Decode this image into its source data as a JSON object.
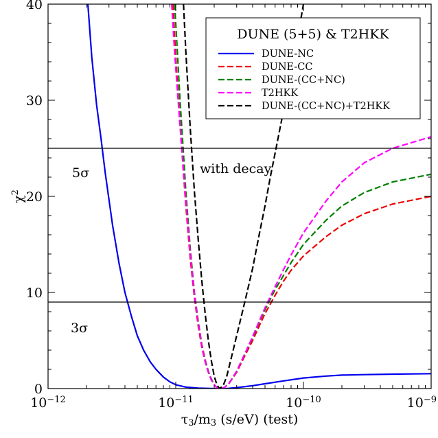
{
  "chart_data": {
    "type": "line",
    "title": "",
    "xlabel": "τ₃/m₃ (s/eV) (test)",
    "ylabel": "χ²",
    "x_scale": "log",
    "xlim": [
      1e-12,
      1e-09
    ],
    "ylim": [
      0,
      40
    ],
    "x_ticks": [
      {
        "value": 1e-12,
        "base": "10",
        "exp": "−12"
      },
      {
        "value": 1e-11,
        "base": "10",
        "exp": "−11"
      },
      {
        "value": 1e-10,
        "base": "10",
        "exp": "−10"
      },
      {
        "value": 1e-09,
        "base": "10",
        "exp": "−9"
      }
    ],
    "y_ticks": [
      0,
      10,
      20,
      30,
      40
    ],
    "y_tick_labels": [
      "0",
      "10",
      "20",
      "30",
      "40"
    ],
    "grid": false,
    "legend": {
      "title": "DUNE (5+5) & T2HKK",
      "position": "top-right"
    },
    "hlines": [
      {
        "y": 25,
        "label": "5σ"
      },
      {
        "y": 9,
        "label": "3σ"
      }
    ],
    "annotations": [
      {
        "text": "with decay",
        "x": 1.4e-11,
        "y": 22.5
      }
    ],
    "series": [
      {
        "name": "DUNE-NC",
        "color": "#0000ee",
        "style": "solid",
        "points": [
          [
            2.05e-12,
            40
          ],
          [
            2.2e-12,
            34.5
          ],
          [
            2.4e-12,
            29.5
          ],
          [
            2.6e-12,
            26
          ],
          [
            2.8e-12,
            22.5
          ],
          [
            3.2e-12,
            17
          ],
          [
            3.6e-12,
            13
          ],
          [
            4e-12,
            10
          ],
          [
            4.5e-12,
            7.5
          ],
          [
            5e-12,
            5.5
          ],
          [
            5.6e-12,
            4
          ],
          [
            6.3e-12,
            2.8
          ],
          [
            7e-12,
            2
          ],
          [
            8e-12,
            1.2
          ],
          [
            9e-12,
            0.7
          ],
          [
            1e-11,
            0.4
          ],
          [
            1.2e-11,
            0.15
          ],
          [
            1.5e-11,
            0.05
          ],
          [
            2e-11,
            0
          ],
          [
            2.5e-11,
            0
          ],
          [
            3e-11,
            0.1
          ],
          [
            4e-11,
            0.3
          ],
          [
            5e-11,
            0.5
          ],
          [
            7e-11,
            0.8
          ],
          [
            1e-10,
            1.1
          ],
          [
            1.5e-10,
            1.3
          ],
          [
            2e-10,
            1.4
          ],
          [
            3e-10,
            1.45
          ],
          [
            5e-10,
            1.5
          ],
          [
            1e-09,
            1.55
          ]
        ]
      },
      {
        "name": "DUNE-CC",
        "color": "#ee0000",
        "style": "dashed",
        "points": [
          [
            9.5e-12,
            40
          ],
          [
            1e-11,
            34.5
          ],
          [
            1.05e-11,
            30
          ],
          [
            1.1e-11,
            26
          ],
          [
            1.2e-11,
            19
          ],
          [
            1.3e-11,
            13.5
          ],
          [
            1.4e-11,
            9.5
          ],
          [
            1.5e-11,
            6.5
          ],
          [
            1.6e-11,
            4.3
          ],
          [
            1.7e-11,
            2.8
          ],
          [
            1.8e-11,
            1.7
          ],
          [
            1.9e-11,
            0.9
          ],
          [
            2e-11,
            0.4
          ],
          [
            2.1e-11,
            0.1
          ],
          [
            2.25e-11,
            0
          ],
          [
            2.4e-11,
            0.1
          ],
          [
            2.6e-11,
            0.5
          ],
          [
            3e-11,
            1.7
          ],
          [
            3.5e-11,
            3.5
          ],
          [
            4e-11,
            5
          ],
          [
            4.5e-11,
            6.5
          ],
          [
            5e-11,
            7.8
          ],
          [
            6e-11,
            9.7
          ],
          [
            7e-11,
            11.2
          ],
          [
            8e-11,
            12.3
          ],
          [
            1e-10,
            13.8
          ],
          [
            1.5e-10,
            15.8
          ],
          [
            2e-10,
            17
          ],
          [
            3e-10,
            18.2
          ],
          [
            5e-10,
            19.2
          ],
          [
            1e-09,
            20
          ]
        ]
      },
      {
        "name": "DUNE-(CC+NC)",
        "color": "#008000",
        "style": "dashed",
        "points": [
          [
            9.8e-12,
            40
          ],
          [
            1.03e-11,
            35
          ],
          [
            1.08e-11,
            30
          ],
          [
            1.13e-11,
            26
          ],
          [
            1.2e-11,
            20.5
          ],
          [
            1.3e-11,
            14.5
          ],
          [
            1.4e-11,
            10
          ],
          [
            1.5e-11,
            7
          ],
          [
            1.6e-11,
            4.6
          ],
          [
            1.7e-11,
            3
          ],
          [
            1.8e-11,
            1.8
          ],
          [
            1.9e-11,
            1
          ],
          [
            2e-11,
            0.4
          ],
          [
            2.1e-11,
            0.1
          ],
          [
            2.25e-11,
            0
          ],
          [
            2.4e-11,
            0.1
          ],
          [
            2.6e-11,
            0.5
          ],
          [
            3e-11,
            1.8
          ],
          [
            3.5e-11,
            3.7
          ],
          [
            4e-11,
            5.3
          ],
          [
            4.5e-11,
            6.9
          ],
          [
            5e-11,
            8.2
          ],
          [
            6e-11,
            10.3
          ],
          [
            7e-11,
            11.8
          ],
          [
            8e-11,
            13.1
          ],
          [
            1e-10,
            15
          ],
          [
            1.5e-10,
            17.5
          ],
          [
            2e-10,
            19
          ],
          [
            3e-10,
            20.4
          ],
          [
            5e-10,
            21.5
          ],
          [
            1e-09,
            22.3
          ]
        ]
      },
      {
        "name": "T2HKK",
        "color": "#ff00ff",
        "style": "dashed",
        "points": [
          [
            9.3e-12,
            40
          ],
          [
            9.8e-12,
            35
          ],
          [
            1.03e-11,
            31
          ],
          [
            1.1e-11,
            26
          ],
          [
            1.2e-11,
            19.5
          ],
          [
            1.3e-11,
            14
          ],
          [
            1.4e-11,
            9.8
          ],
          [
            1.5e-11,
            6.8
          ],
          [
            1.6e-11,
            4.5
          ],
          [
            1.7e-11,
            2.9
          ],
          [
            1.8e-11,
            1.7
          ],
          [
            1.9e-11,
            0.9
          ],
          [
            2e-11,
            0.4
          ],
          [
            2.1e-11,
            0.1
          ],
          [
            2.25e-11,
            0
          ],
          [
            2.4e-11,
            0.1
          ],
          [
            2.6e-11,
            0.5
          ],
          [
            3e-11,
            1.8
          ],
          [
            3.5e-11,
            3.7
          ],
          [
            4e-11,
            5.4
          ],
          [
            4.5e-11,
            7
          ],
          [
            5e-11,
            8.4
          ],
          [
            6e-11,
            10.6
          ],
          [
            7e-11,
            12.4
          ],
          [
            8e-11,
            13.9
          ],
          [
            1e-10,
            16.2
          ],
          [
            1.5e-10,
            19.5
          ],
          [
            2e-10,
            21.5
          ],
          [
            3e-10,
            23.5
          ],
          [
            5e-10,
            25
          ],
          [
            1e-09,
            26.2
          ]
        ]
      },
      {
        "name": "DUNE-(CC+NC)+T2HKK",
        "color": "#000000",
        "style": "dashed",
        "points": [
          [
            1.15e-11,
            40
          ],
          [
            1.2e-11,
            35
          ],
          [
            1.3e-11,
            27
          ],
          [
            1.4e-11,
            20.5
          ],
          [
            1.5e-11,
            15.5
          ],
          [
            1.6e-11,
            11.2
          ],
          [
            1.7e-11,
            7.8
          ],
          [
            1.8e-11,
            5
          ],
          [
            1.9e-11,
            2.9
          ],
          [
            2e-11,
            1.3
          ],
          [
            2.1e-11,
            0.4
          ],
          [
            2.2e-11,
            0
          ],
          [
            2.35e-11,
            0.3
          ],
          [
            2.5e-11,
            1.2
          ],
          [
            2.7e-11,
            3
          ],
          [
            3e-11,
            5.5
          ],
          [
            3.5e-11,
            9.2
          ],
          [
            4e-11,
            12.5
          ],
          [
            4.5e-11,
            16
          ],
          [
            5e-11,
            19
          ],
          [
            5.5e-11,
            22
          ],
          [
            6e-11,
            24.5
          ],
          [
            7e-11,
            29
          ],
          [
            8e-11,
            33
          ],
          [
            9e-11,
            36.5
          ],
          [
            1e-10,
            40
          ]
        ]
      }
    ]
  }
}
